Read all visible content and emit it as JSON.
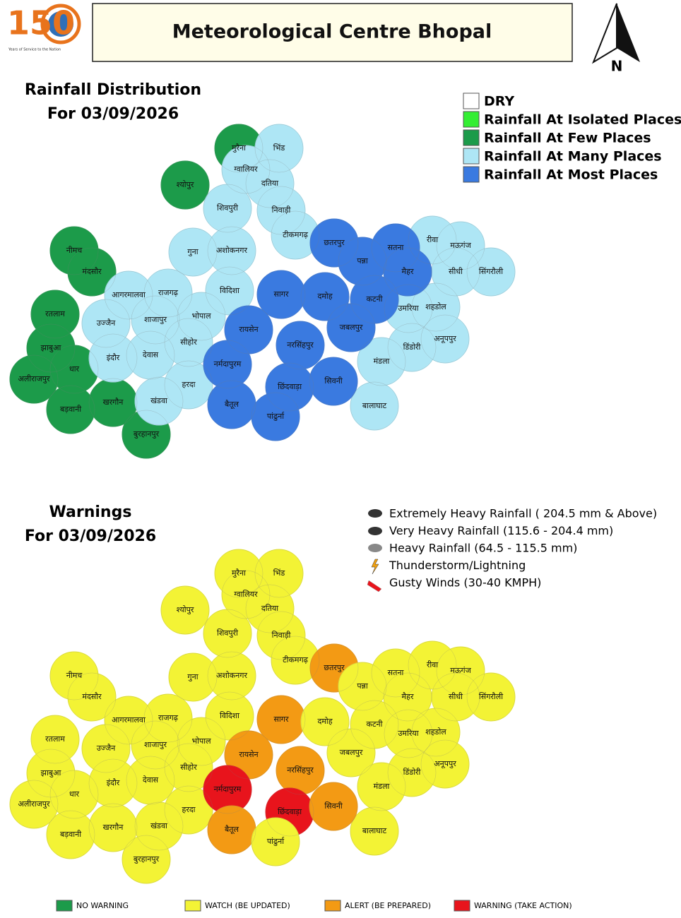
{
  "header": {
    "logo_number": "150",
    "logo_caption": "Years of Service to the Nation",
    "title": "Meteorological Centre Bhopal",
    "north": "N"
  },
  "rainfall_map": {
    "title": "Rainfall Distribution",
    "date": "For 03/09/2026",
    "legend": [
      {
        "label": "DRY",
        "color": "#ffffff"
      },
      {
        "label": "Rainfall At Isolated Places",
        "color": "#33ee33"
      },
      {
        "label": "Rainfall At Few Places",
        "color": "#1c9b4a"
      },
      {
        "label": "Rainfall At Many Places",
        "color": "#aee6f5"
      },
      {
        "label": "Rainfall At Most Places",
        "color": "#3a7ae0"
      }
    ],
    "districts": [
      {
        "name": "मुरैना",
        "color": "#1c9b4a"
      },
      {
        "name": "श्योपुर",
        "color": "#1c9b4a"
      },
      {
        "name": "नीमच",
        "color": "#1c9b4a"
      },
      {
        "name": "मंदसौर",
        "color": "#1c9b4a"
      },
      {
        "name": "रतलाम",
        "color": "#1c9b4a"
      },
      {
        "name": "झाबुआ",
        "color": "#1c9b4a"
      },
      {
        "name": "धार",
        "color": "#1c9b4a"
      },
      {
        "name": "अलीराजपुर",
        "color": "#1c9b4a"
      },
      {
        "name": "बड़वानी",
        "color": "#1c9b4a"
      },
      {
        "name": "खरगौन",
        "color": "#1c9b4a"
      },
      {
        "name": "बुरहानपुर",
        "color": "#1c9b4a"
      },
      {
        "name": "भिंड",
        "color": "#aee6f5"
      },
      {
        "name": "ग्वालियर",
        "color": "#aee6f5"
      },
      {
        "name": "दतिया",
        "color": "#aee6f5"
      },
      {
        "name": "शिवपुरी",
        "color": "#aee6f5"
      },
      {
        "name": "निवाड़ी",
        "color": "#aee6f5"
      },
      {
        "name": "टीकमगढ़",
        "color": "#aee6f5"
      },
      {
        "name": "गुना",
        "color": "#aee6f5"
      },
      {
        "name": "अशोकनगर",
        "color": "#aee6f5"
      },
      {
        "name": "विदिशा",
        "color": "#aee6f5"
      },
      {
        "name": "आगरमालवा",
        "color": "#aee6f5"
      },
      {
        "name": "राजगढ़",
        "color": "#aee6f5"
      },
      {
        "name": "उज्जैन",
        "color": "#aee6f5"
      },
      {
        "name": "शाजापुर",
        "color": "#aee6f5"
      },
      {
        "name": "भोपाल",
        "color": "#aee6f5"
      },
      {
        "name": "इंदौर",
        "color": "#aee6f5"
      },
      {
        "name": "देवास",
        "color": "#aee6f5"
      },
      {
        "name": "सीहोर",
        "color": "#aee6f5"
      },
      {
        "name": "हरदा",
        "color": "#aee6f5"
      },
      {
        "name": "खंडवा",
        "color": "#aee6f5"
      },
      {
        "name": "रीवा",
        "color": "#aee6f5"
      },
      {
        "name": "मऊगंज",
        "color": "#aee6f5"
      },
      {
        "name": "सीधी",
        "color": "#aee6f5"
      },
      {
        "name": "सिंगरौली",
        "color": "#aee6f5"
      },
      {
        "name": "उमरिया",
        "color": "#aee6f5"
      },
      {
        "name": "शहडोल",
        "color": "#aee6f5"
      },
      {
        "name": "अनूपपुर",
        "color": "#aee6f5"
      },
      {
        "name": "डिंडोरी",
        "color": "#aee6f5"
      },
      {
        "name": "मंडला",
        "color": "#aee6f5"
      },
      {
        "name": "बालाघाट",
        "color": "#aee6f5"
      },
      {
        "name": "छतरपुर",
        "color": "#3a7ae0"
      },
      {
        "name": "सतना",
        "color": "#3a7ae0"
      },
      {
        "name": "पन्ना",
        "color": "#3a7ae0"
      },
      {
        "name": "मैहर",
        "color": "#3a7ae0"
      },
      {
        "name": "सागर",
        "color": "#3a7ae0"
      },
      {
        "name": "दमोह",
        "color": "#3a7ae0"
      },
      {
        "name": "कटनी",
        "color": "#3a7ae0"
      },
      {
        "name": "रायसेन",
        "color": "#3a7ae0"
      },
      {
        "name": "जबलपुर",
        "color": "#3a7ae0"
      },
      {
        "name": "नरसिंहपुर",
        "color": "#3a7ae0"
      },
      {
        "name": "नर्मदापुरम",
        "color": "#3a7ae0"
      },
      {
        "name": "छिंदवाड़ा",
        "color": "#3a7ae0"
      },
      {
        "name": "सिवनी",
        "color": "#3a7ae0"
      },
      {
        "name": "बैतूल",
        "color": "#3a7ae0"
      },
      {
        "name": "पांढुर्ना",
        "color": "#3a7ae0"
      }
    ]
  },
  "warning_map": {
    "title": "Warnings",
    "date": "For 03/09/2026",
    "icon_legend": [
      "Extremely Heavy Rainfall ( 204.5 mm & Above)",
      "Very Heavy Rainfall (115.6 - 204.4 mm)",
      "Heavy Rainfall (64.5 - 115.5 mm)",
      "Thunderstorm/Lightning",
      "Gusty Winds (30-40 KMPH)"
    ],
    "legend": [
      {
        "label": "NO WARNING",
        "color": "#1c9b4a"
      },
      {
        "label": "WATCH (BE UPDATED)",
        "color": "#f3f335"
      },
      {
        "label": "ALERT (BE PREPARED)",
        "color": "#f39a14"
      },
      {
        "label": "WARNING (TAKE ACTION)",
        "color": "#e8141c"
      }
    ],
    "districts": [
      {
        "name": "मुरैना",
        "color": "#f3f335"
      },
      {
        "name": "श्योपुर",
        "color": "#f3f335"
      },
      {
        "name": "नीमच",
        "color": "#f3f335"
      },
      {
        "name": "मंदसौर",
        "color": "#f3f335"
      },
      {
        "name": "रतलाम",
        "color": "#f3f335"
      },
      {
        "name": "झाबुआ",
        "color": "#f3f335"
      },
      {
        "name": "धार",
        "color": "#f3f335"
      },
      {
        "name": "अलीराजपुर",
        "color": "#f3f335"
      },
      {
        "name": "बड़वानी",
        "color": "#f3f335"
      },
      {
        "name": "खरगौन",
        "color": "#f3f335"
      },
      {
        "name": "बुरहानपुर",
        "color": "#f3f335"
      },
      {
        "name": "भिंड",
        "color": "#f3f335"
      },
      {
        "name": "ग्वालियर",
        "color": "#f3f335"
      },
      {
        "name": "दतिया",
        "color": "#f3f335"
      },
      {
        "name": "शिवपुरी",
        "color": "#f3f335"
      },
      {
        "name": "निवाड़ी",
        "color": "#f3f335"
      },
      {
        "name": "टीकमगढ़",
        "color": "#f3f335"
      },
      {
        "name": "गुना",
        "color": "#f3f335"
      },
      {
        "name": "अशोकनगर",
        "color": "#f3f335"
      },
      {
        "name": "विदिशा",
        "color": "#f3f335"
      },
      {
        "name": "आगरमालवा",
        "color": "#f3f335"
      },
      {
        "name": "राजगढ़",
        "color": "#f3f335"
      },
      {
        "name": "उज्जैन",
        "color": "#f3f335"
      },
      {
        "name": "शाजापुर",
        "color": "#f3f335"
      },
      {
        "name": "भोपाल",
        "color": "#f3f335"
      },
      {
        "name": "इंदौर",
        "color": "#f3f335"
      },
      {
        "name": "देवास",
        "color": "#f3f335"
      },
      {
        "name": "सीहोर",
        "color": "#f3f335"
      },
      {
        "name": "हरदा",
        "color": "#f3f335"
      },
      {
        "name": "खंडवा",
        "color": "#f3f335"
      },
      {
        "name": "रीवा",
        "color": "#f3f335"
      },
      {
        "name": "मऊगंज",
        "color": "#f3f335"
      },
      {
        "name": "सीधी",
        "color": "#f3f335"
      },
      {
        "name": "सिंगरौली",
        "color": "#f3f335"
      },
      {
        "name": "उमरिया",
        "color": "#f3f335"
      },
      {
        "name": "शहडोल",
        "color": "#f3f335"
      },
      {
        "name": "अनूपपुर",
        "color": "#f3f335"
      },
      {
        "name": "डिंडोरी",
        "color": "#f3f335"
      },
      {
        "name": "मंडला",
        "color": "#f3f335"
      },
      {
        "name": "बालाघाट",
        "color": "#f3f335"
      },
      {
        "name": "छतरपुर",
        "color": "#f39a14"
      },
      {
        "name": "सतना",
        "color": "#f3f335"
      },
      {
        "name": "पन्ना",
        "color": "#f3f335"
      },
      {
        "name": "मैहर",
        "color": "#f3f335"
      },
      {
        "name": "सागर",
        "color": "#f39a14"
      },
      {
        "name": "दमोह",
        "color": "#f3f335"
      },
      {
        "name": "कटनी",
        "color": "#f3f335"
      },
      {
        "name": "रायसेन",
        "color": "#f39a14"
      },
      {
        "name": "जबलपुर",
        "color": "#f3f335"
      },
      {
        "name": "नरसिंहपुर",
        "color": "#f39a14"
      },
      {
        "name": "नर्मदापुरम",
        "color": "#e8141c"
      },
      {
        "name": "छिंदवाड़ा",
        "color": "#e8141c"
      },
      {
        "name": "सिवनी",
        "color": "#f39a14"
      },
      {
        "name": "बैतूल",
        "color": "#f39a14"
      },
      {
        "name": "पांढुर्ना",
        "color": "#f3f335"
      }
    ]
  }
}
